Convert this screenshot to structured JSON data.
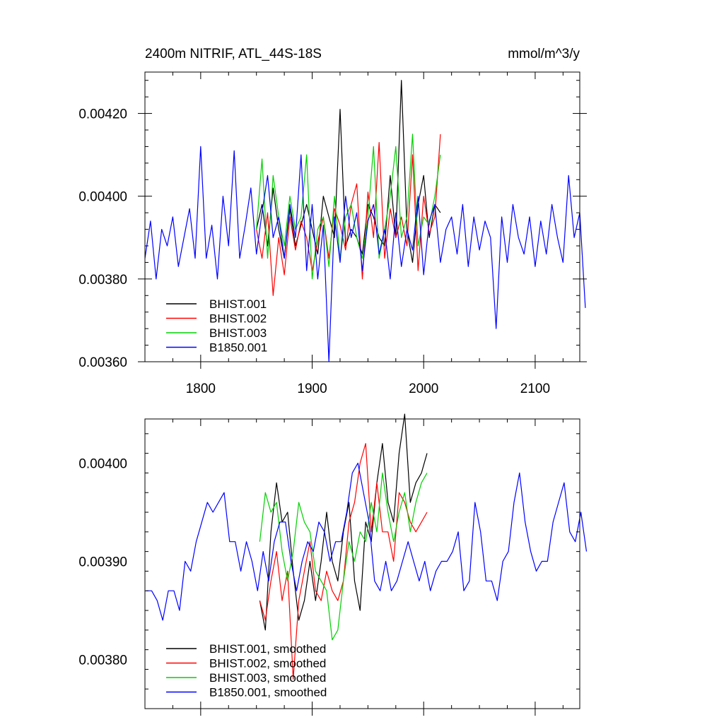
{
  "colors": {
    "BHIST.001": "#000000",
    "BHIST.002": "#ff0000",
    "BHIST.003": "#00d000",
    "B1850.001": "#0000ff"
  },
  "chart_data": [
    {
      "type": "line",
      "title": "2400m NITRIF, ATL_44S-18S",
      "units": "mmol/m^3/y",
      "xlabel": "",
      "ylabel": "",
      "xlim": [
        1750,
        2140
      ],
      "ylim": [
        0.0036,
        0.0043
      ],
      "xticks": [
        1800,
        1900,
        2000,
        2100
      ],
      "xtick_labels": [
        "1800",
        "1900",
        "2000",
        "2100"
      ],
      "yticks": [
        0.0036,
        0.0038,
        0.004,
        0.0042
      ],
      "ytick_labels": [
        "0.00360",
        "0.00380",
        "0.00400",
        "0.00420"
      ],
      "legend_position": "bottom-left",
      "series": [
        {
          "name": "BHIST.001",
          "x_start": 1850,
          "x_step": 5,
          "values": [
            0.00392,
            0.00398,
            0.00388,
            0.00402,
            0.00392,
            0.00385,
            0.00397,
            0.00388,
            0.00393,
            0.00398,
            0.00392,
            0.00386,
            0.004,
            0.00395,
            0.0039,
            0.00421,
            0.00388,
            0.00392,
            0.0039,
            0.00386,
            0.00398,
            0.00395,
            0.0039,
            0.00388,
            0.00405,
            0.0039,
            0.00428,
            0.00392,
            0.00384,
            0.00398,
            0.00405,
            0.0039,
            0.00398,
            0.00396
          ]
        },
        {
          "name": "BHIST.002",
          "x_start": 1850,
          "x_step": 5,
          "values": [
            0.00392,
            0.00385,
            0.00396,
            0.00376,
            0.0039,
            0.00381,
            0.00395,
            0.00387,
            0.00394,
            0.0039,
            0.00382,
            0.00389,
            0.00395,
            0.00385,
            0.00397,
            0.00393,
            0.00387,
            0.00398,
            0.00403,
            0.0038,
            0.00401,
            0.0039,
            0.00413,
            0.00385,
            0.00397,
            0.0039,
            0.00395,
            0.00388,
            0.0041,
            0.00382,
            0.004,
            0.00391,
            0.00395,
            0.00415
          ]
        },
        {
          "name": "BHIST.003",
          "x_start": 1850,
          "x_step": 5,
          "values": [
            0.00392,
            0.00409,
            0.00385,
            0.00405,
            0.00395,
            0.00388,
            0.004,
            0.00392,
            0.00395,
            0.0041,
            0.0038,
            0.00392,
            0.00395,
            0.00383,
            0.004,
            0.00385,
            0.00395,
            0.00398,
            0.0039,
            0.00385,
            0.00395,
            0.00412,
            0.00385,
            0.00392,
            0.004,
            0.00412,
            0.0039,
            0.00395,
            0.00415,
            0.00388,
            0.00395,
            0.00393,
            0.004,
            0.0041
          ]
        },
        {
          "name": "B1850.001",
          "x_start": 1750,
          "x_step": 5,
          "values": [
            0.00385,
            0.00394,
            0.0038,
            0.00392,
            0.00388,
            0.00395,
            0.00383,
            0.0039,
            0.00397,
            0.00385,
            0.00412,
            0.00385,
            0.00393,
            0.0038,
            0.004,
            0.00388,
            0.00411,
            0.00385,
            0.00393,
            0.00402,
            0.00386,
            0.00396,
            0.00405,
            0.0039,
            0.00395,
            0.00385,
            0.00398,
            0.0039,
            0.0041,
            0.00382,
            0.00398,
            0.0038,
            0.00393,
            0.0036,
            0.00395,
            0.00384,
            0.004,
            0.0039,
            0.00396,
            0.00382,
            0.00394,
            0.00398,
            0.00386,
            0.00392,
            0.0038,
            0.00396,
            0.00383,
            0.00392,
            0.00387,
            0.004,
            0.00381,
            0.00394,
            0.00398,
            0.00384,
            0.00392,
            0.00395,
            0.00386,
            0.00398,
            0.00383,
            0.00395,
            0.00387,
            0.00394,
            0.0039,
            0.00368,
            0.00395,
            0.00384,
            0.00398,
            0.0039,
            0.00386,
            0.00395,
            0.00383,
            0.00394,
            0.00386,
            0.00398,
            0.0039,
            0.00384,
            0.00405,
            0.0039,
            0.00396,
            0.00373
          ]
        }
      ]
    },
    {
      "type": "line",
      "title": "",
      "units": "",
      "xlabel": "",
      "ylabel": "",
      "xlim": [
        1750,
        2140
      ],
      "ylim": [
        0.00375,
        0.004045
      ],
      "xticks": [
        1800,
        1900,
        2000,
        2100
      ],
      "xtick_labels": [
        "",
        "",
        "",
        ""
      ],
      "yticks": [
        0.0038,
        0.0039,
        0.004
      ],
      "ytick_labels": [
        "0.00380",
        "0.00390",
        "0.00400"
      ],
      "legend_position": "bottom-left",
      "series": [
        {
          "name": "BHIST.001, smoothed",
          "x_start": 1853,
          "x_step": 5,
          "values": [
            0.00386,
            0.00383,
            0.00393,
            0.00398,
            0.00394,
            0.00395,
            0.00389,
            0.00384,
            0.00386,
            0.0039,
            0.00386,
            0.0039,
            0.00395,
            0.0039,
            0.00388,
            0.00393,
            0.00396,
            0.00388,
            0.00385,
            0.00394,
            0.00392,
            0.00398,
            0.00402,
            0.00396,
            0.00394,
            0.00401,
            0.00405,
            0.00396,
            0.00398,
            0.00399,
            0.00401
          ]
        },
        {
          "name": "BHIST.002, smoothed",
          "x_start": 1853,
          "x_step": 5,
          "values": [
            0.00386,
            0.00384,
            0.00388,
            0.00391,
            0.00386,
            0.00389,
            0.00378,
            0.00386,
            0.00389,
            0.00392,
            0.00387,
            0.00386,
            0.00389,
            0.00387,
            0.00386,
            0.00388,
            0.00394,
            0.00396,
            0.004,
            0.00402,
            0.00393,
            0.00398,
            0.00393,
            0.00393,
            0.0039,
            0.00397,
            0.00396,
            0.00394,
            0.00393,
            0.00394,
            0.00395
          ]
        },
        {
          "name": "BHIST.003, smoothed",
          "x_start": 1853,
          "x_step": 5,
          "values": [
            0.00392,
            0.00397,
            0.00395,
            0.00396,
            0.00391,
            0.00388,
            0.00391,
            0.00396,
            0.00394,
            0.00393,
            0.00389,
            0.00388,
            0.00387,
            0.00382,
            0.00383,
            0.00388,
            0.00392,
            0.0039,
            0.00393,
            0.00392,
            0.00396,
            0.00393,
            0.00399,
            0.00395,
            0.00392,
            0.00395,
            0.00397,
            0.00393,
            0.00396,
            0.00398,
            0.00399
          ]
        },
        {
          "name": "B1850.001, smoothed",
          "x_start": 1751,
          "x_step": 5,
          "values": [
            0.00387,
            0.00387,
            0.00386,
            0.00384,
            0.00387,
            0.00387,
            0.00385,
            0.0039,
            0.00389,
            0.00392,
            0.00394,
            0.00396,
            0.00395,
            0.00396,
            0.00397,
            0.00392,
            0.00392,
            0.00389,
            0.00392,
            0.0039,
            0.00387,
            0.00391,
            0.00388,
            0.00392,
            0.00394,
            0.00394,
            0.0039,
            0.00387,
            0.0039,
            0.00392,
            0.00391,
            0.00394,
            0.00393,
            0.0039,
            0.00392,
            0.00392,
            0.00395,
            0.00399,
            0.004,
            0.00397,
            0.00394,
            0.00388,
            0.00387,
            0.0039,
            0.00387,
            0.00388,
            0.0039,
            0.00392,
            0.0039,
            0.00388,
            0.0039,
            0.00387,
            0.00389,
            0.0039,
            0.0039,
            0.00391,
            0.00393,
            0.00387,
            0.00388,
            0.00396,
            0.00393,
            0.00388,
            0.00388,
            0.00386,
            0.0039,
            0.00391,
            0.00396,
            0.00399,
            0.00394,
            0.00391,
            0.00389,
            0.0039,
            0.0039,
            0.00394,
            0.00396,
            0.00398,
            0.00393,
            0.00392,
            0.00395,
            0.00391
          ]
        }
      ]
    }
  ]
}
